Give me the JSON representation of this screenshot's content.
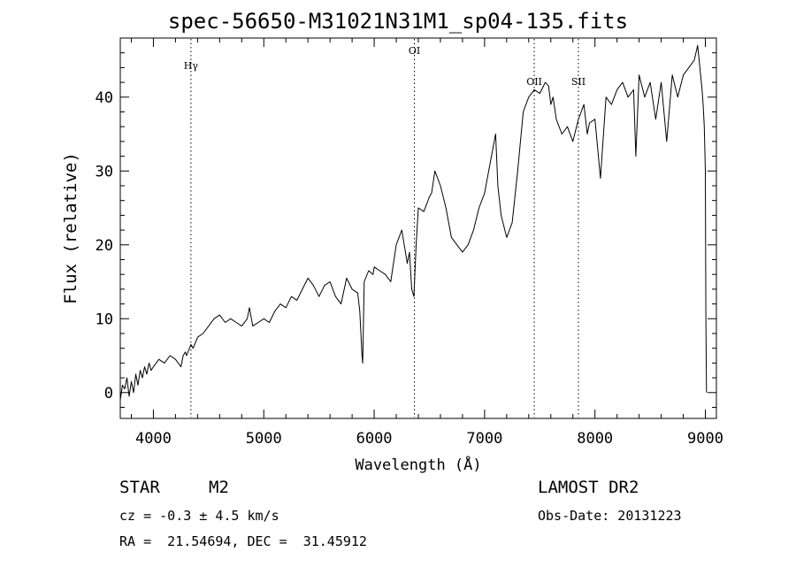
{
  "title": "spec-56650-M31021N31M1_sp04-135.fits",
  "footer": {
    "object_type": "STAR",
    "object_class": "M2",
    "survey": "LAMOST DR2",
    "cz_text": "cz = -0.3 ± 4.5 km/s",
    "obs_date_text": "Obs-Date: 20131223",
    "radec_text": "RA =  21.54694, DEC =  31.45912"
  },
  "chart_data": {
    "type": "line",
    "title": "spec-56650-M31021N31M1_sp04-135.fits",
    "xlabel": "Wavelength (Å)",
    "ylabel": "Flux (relative)",
    "xlim": [
      3700,
      9100
    ],
    "ylim": [
      -3.5,
      48
    ],
    "xticks": [
      4000,
      5000,
      6000,
      7000,
      8000,
      9000
    ],
    "yticks": [
      0,
      10,
      20,
      30,
      40
    ],
    "grid": false,
    "lines": [
      {
        "label": "Hγ",
        "x": 4340
      },
      {
        "label": "OI",
        "x": 6364
      },
      {
        "label": "OII",
        "x": 7450
      },
      {
        "label": "SII",
        "x": 7850
      }
    ],
    "series": [
      {
        "x": [
          3700,
          3720,
          3740,
          3760,
          3780,
          3800,
          3820,
          3840,
          3860,
          3880,
          3900,
          3920,
          3940,
          3960,
          3980,
          4000,
          4050,
          4100,
          4150,
          4200,
          4250,
          4270,
          4290,
          4300,
          4340,
          4360,
          4400,
          4450,
          4500,
          4550,
          4600,
          4650,
          4700,
          4750,
          4800,
          4850,
          4870,
          4900,
          4950,
          5000,
          5050,
          5100,
          5150,
          5200,
          5250,
          5300,
          5350,
          5400,
          5450,
          5500,
          5550,
          5600,
          5650,
          5700,
          5750,
          5800,
          5850,
          5870,
          5890,
          5896,
          5910,
          5950,
          5990,
          6000,
          6050,
          6100,
          6150,
          6200,
          6250,
          6300,
          6320,
          6340,
          6360,
          6380,
          6400,
          6450,
          6500,
          6520,
          6550,
          6600,
          6650,
          6700,
          6750,
          6800,
          6850,
          6900,
          6950,
          7000,
          7050,
          7100,
          7120,
          7150,
          7200,
          7250,
          7300,
          7350,
          7400,
          7450,
          7500,
          7550,
          7580,
          7600,
          7620,
          7650,
          7700,
          7750,
          7800,
          7850,
          7900,
          7930,
          7950,
          8000,
          8050,
          8100,
          8150,
          8200,
          8250,
          8300,
          8350,
          8370,
          8400,
          8450,
          8500,
          8550,
          8600,
          8650,
          8700,
          8750,
          8800,
          8850,
          8900,
          8930,
          8950,
          8970,
          8980,
          8990,
          9000,
          9005,
          9010
        ],
        "values": [
          -1,
          1,
          0.5,
          2,
          -0.5,
          1.5,
          0,
          2.5,
          1,
          3,
          2,
          3.5,
          2.5,
          4,
          3,
          3.5,
          4.5,
          4,
          5,
          4.5,
          3.5,
          5,
          5.5,
          5,
          6.5,
          6,
          7.5,
          8,
          9,
          10,
          10.5,
          9.5,
          10,
          9.5,
          9,
          10,
          11.5,
          9,
          9.5,
          10,
          9.5,
          11,
          12,
          11.5,
          13,
          12.5,
          14,
          15.5,
          14.5,
          13,
          14.5,
          15,
          13,
          12,
          15.5,
          14,
          13.5,
          11,
          5,
          4,
          15,
          16.5,
          16,
          17,
          16.5,
          16,
          15,
          20,
          22,
          17.5,
          19,
          14,
          13,
          20,
          25,
          24.5,
          26.5,
          27,
          30,
          28,
          25,
          21,
          20,
          19,
          20,
          22,
          25,
          27,
          31,
          35,
          28,
          24,
          21,
          23,
          30,
          38,
          40,
          41,
          40.5,
          42,
          41.5,
          39,
          40,
          37,
          35,
          36,
          34,
          37,
          39,
          35,
          36.5,
          37,
          29,
          40,
          39,
          41,
          42,
          40,
          41,
          32,
          43,
          40,
          42,
          37,
          42,
          34,
          43,
          40,
          43,
          44,
          45,
          47,
          44,
          41,
          39,
          36,
          30,
          10,
          0
        ]
      }
    ]
  }
}
